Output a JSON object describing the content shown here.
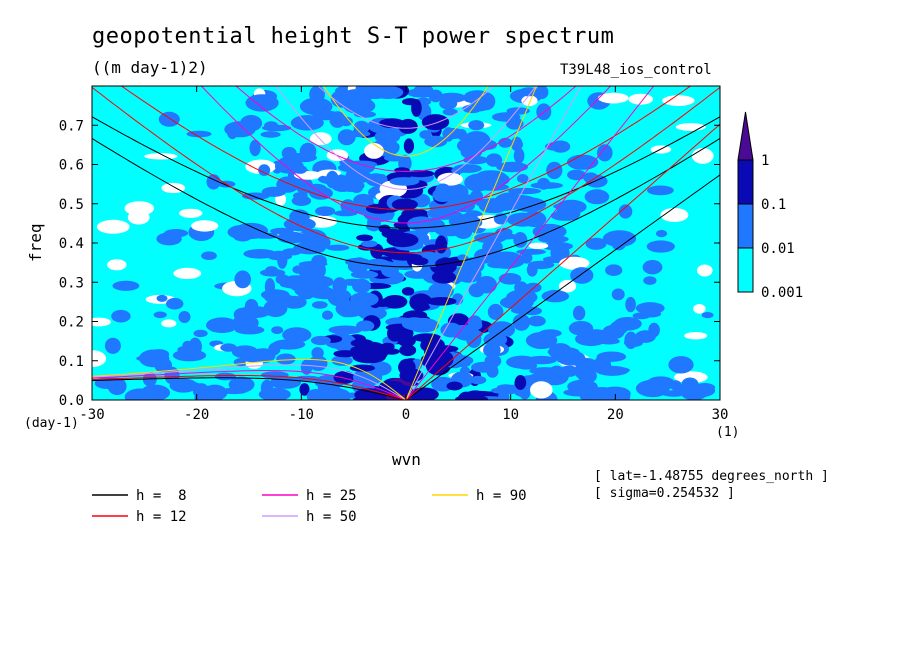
{
  "chart_data": {
    "type": "heatmap",
    "title": "geopotential height S-T power spectrum",
    "units": "((m day-1)2)",
    "run_label": "T39L48_ios_control",
    "xlabel": "wvn",
    "ylabel": "freq",
    "x_unit": "(1)",
    "y_unit": "(day-1)",
    "xlim": [
      -30,
      30
    ],
    "ylim": [
      0,
      0.8
    ],
    "x_ticks": [
      "-30",
      "-20",
      "-10",
      "0",
      "10",
      "20",
      "30"
    ],
    "y_ticks": [
      "0.0",
      "0.1",
      "0.2",
      "0.3",
      "0.4",
      "0.5",
      "0.6",
      "0.7"
    ],
    "colorbar": {
      "levels": [
        "0.001",
        "0.01",
        "0.1",
        "1"
      ],
      "colors": [
        "#00ffff",
        "#1f78ff",
        "#0a0ab4",
        "#4b0a96"
      ]
    },
    "dispersion_curves": [
      {
        "label": "h =  8",
        "h": 8,
        "color": "#000000"
      },
      {
        "label": "h = 12",
        "h": 12,
        "color": "#ff0000"
      },
      {
        "label": "h = 25",
        "h": 25,
        "color": "#ff00c8"
      },
      {
        "label": "h = 50",
        "h": 50,
        "color": "#d29bff"
      },
      {
        "label": "h = 90",
        "h": 90,
        "color": "#ffd700"
      }
    ],
    "annotations": [
      "[ lat=-1.48755 degrees_north ]",
      "[ sigma=0.254532 ]"
    ]
  }
}
